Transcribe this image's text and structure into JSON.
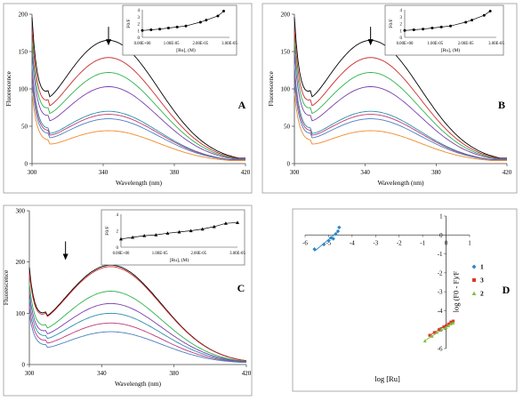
{
  "panel_letters": [
    "A",
    "B",
    "C",
    "D"
  ],
  "colors": {
    "curves": [
      "#000000",
      "#cc2a2a",
      "#2cb24a",
      "#7a3fb0",
      "#2a8fa8",
      "#c03a7a",
      "#4a7fc0",
      "#f08a2a"
    ],
    "d_series": [
      "#2e86c8",
      "#d83a2a",
      "#7fbf3f"
    ]
  },
  "chart_data": [
    {
      "panel": "A",
      "type": "line",
      "xlabel": "Wavelength (nm)",
      "ylabel": "Fluorescence",
      "xlim": [
        300,
        420
      ],
      "ylim": [
        0,
        200
      ],
      "xticks": [
        "300",
        "340",
        "380",
        "420"
      ],
      "yticks": [
        "0",
        "50",
        "100",
        "150",
        "200"
      ],
      "peak_x": 343,
      "peak_values": [
        163,
        140,
        120,
        101,
        68,
        64,
        58,
        42
      ],
      "arrow": "down",
      "inset": {
        "xlabel": "[Ru], (M)",
        "ylabel": "F0/F",
        "xticks": [
          "0.00E+00",
          "1.00E-05",
          "2.00E-05",
          "3.00E-05"
        ],
        "yticks": [
          "0",
          "1",
          "2",
          "3",
          "4"
        ],
        "x": [
          0.0,
          3e-06,
          6e-06,
          9e-06,
          1.2e-05,
          1.5e-05,
          2e-05,
          2.2e-05,
          2.6e-05,
          2.8e-05
        ],
        "y": [
          1.0,
          1.1,
          1.2,
          1.35,
          1.5,
          1.65,
          2.2,
          2.5,
          3.1,
          3.8
        ],
        "marker": "circle"
      }
    },
    {
      "panel": "B",
      "type": "line",
      "xlabel": "Wavelength (nm)",
      "ylabel": "Fluorescence",
      "xlim": [
        300,
        420
      ],
      "ylim": [
        0,
        200
      ],
      "xticks": [
        "300",
        "340",
        "380",
        "420"
      ],
      "yticks": [
        "0",
        "50",
        "100",
        "150",
        "200"
      ],
      "peak_x": 343,
      "peak_values": [
        163,
        140,
        120,
        101,
        68,
        64,
        58,
        42
      ],
      "arrow": "down",
      "inset": {
        "xlabel": "[Ru], (M)",
        "ylabel": "F0/F",
        "xticks": [
          "0.00E+00",
          "1.00E-05",
          "2.00E-05",
          "3.00E-05"
        ],
        "yticks": [
          "0",
          "1",
          "2",
          "3",
          "4"
        ],
        "x": [
          0.0,
          3e-06,
          6e-06,
          9e-06,
          1.2e-05,
          1.5e-05,
          2e-05,
          2.2e-05,
          2.6e-05,
          2.8e-05
        ],
        "y": [
          1.0,
          1.1,
          1.2,
          1.35,
          1.5,
          1.65,
          2.2,
          2.5,
          3.2,
          3.8
        ],
        "marker": "circle"
      }
    },
    {
      "panel": "C",
      "type": "line",
      "xlabel": "Wavelength (nm)",
      "ylabel": "Fluorescence",
      "xlim": [
        300,
        420
      ],
      "ylim": [
        0,
        300
      ],
      "xticks": [
        "300",
        "340",
        "380",
        "420"
      ],
      "yticks": [
        "0",
        "100",
        "200",
        "300"
      ],
      "peak_x": 345,
      "peak_values": [
        192,
        189,
        141,
        117,
        98,
        79,
        62
      ],
      "arrow": "down",
      "inset": {
        "xlabel": "[Ru], (M)",
        "ylabel": "F0/F",
        "xticks": [
          "0.00E+00",
          "1.00E-05",
          "2.00E-05",
          "3.00E-05"
        ],
        "yticks": [
          "0",
          "2",
          "4"
        ],
        "x": [
          0.0,
          3e-06,
          6e-06,
          9e-06,
          1.2e-05,
          1.5e-05,
          1.8e-05,
          2.1e-05,
          2.4e-05,
          2.7e-05,
          3e-05
        ],
        "y": [
          1.0,
          1.2,
          1.4,
          1.5,
          1.7,
          1.85,
          2.0,
          2.2,
          2.5,
          2.9,
          3.0
        ],
        "marker": "triangle"
      }
    },
    {
      "panel": "D",
      "type": "scatter",
      "xlabel": "log [Ru]",
      "ylabel": "log (F0 - F)/F",
      "xlim": [
        -6,
        1
      ],
      "ylim": [
        -6,
        1
      ],
      "xticks": [
        "-6",
        "-5",
        "-4",
        "-3",
        "-2",
        "-1",
        "0",
        "1"
      ],
      "yticks": [
        "1",
        "0",
        "-1",
        "-2",
        "-3",
        "-4",
        "-5",
        "-6"
      ],
      "legend": [
        "1",
        "3",
        "2"
      ],
      "legend_position": "right",
      "series": [
        {
          "name": "1",
          "marker": "diamond",
          "x": [
            -5.6,
            -5.2,
            -5.0,
            -4.9,
            -4.8,
            -4.7,
            -4.6,
            -4.55
          ],
          "y": [
            -0.75,
            -0.5,
            -0.3,
            -0.15,
            -0.2,
            0.05,
            0.2,
            0.4
          ]
        },
        {
          "name": "3",
          "marker": "square",
          "x": [
            -0.7,
            -0.5,
            -0.3,
            -0.1,
            0.0,
            0.1,
            0.2,
            0.3
          ],
          "y": [
            -5.3,
            -5.15,
            -5.0,
            -4.85,
            -4.8,
            -4.7,
            -4.6,
            -4.55
          ]
        },
        {
          "name": "2",
          "marker": "triangle",
          "x": [
            -0.9,
            -0.6,
            -0.4,
            -0.2,
            0.0,
            0.1,
            0.2,
            0.3
          ],
          "y": [
            -5.6,
            -5.35,
            -5.15,
            -5.0,
            -4.9,
            -4.8,
            -4.7,
            -4.65
          ]
        }
      ]
    }
  ]
}
